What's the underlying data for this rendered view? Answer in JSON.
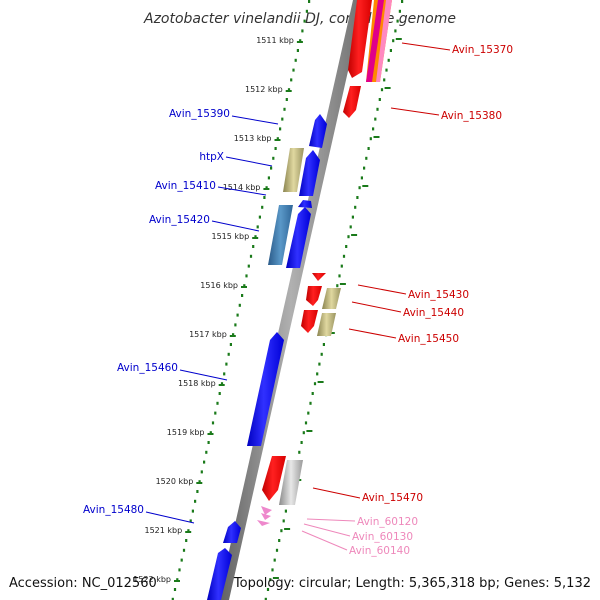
{
  "title": "Azotobacter vinelandii DJ, complete genome",
  "footer": {
    "accession": "Accession: NC_012560",
    "topology": "Topology: circular; Length: 5,365,318 bp; Genes: 5,132"
  },
  "colors": {
    "background": "#ffffff",
    "backbone": "#808080",
    "tick": "#1a7a1a",
    "forward_label": "#0000cc",
    "reverse_label": "#cc0000",
    "rna_label": "#ee88bb",
    "cds_forward": "#0000ee",
    "cds_reverse": "#ee0000",
    "pseudo": "#b8b070",
    "steelblue": "#3a78a8",
    "gray_feature": "#b0b0b0",
    "trna": "#ee88cc"
  },
  "ticks": [
    {
      "label": "1511 kbp",
      "kbp": 1511
    },
    {
      "label": "1512 kbp",
      "kbp": 1512
    },
    {
      "label": "1513 kbp",
      "kbp": 1513
    },
    {
      "label": "1514 kbp",
      "kbp": 1514
    },
    {
      "label": "1515 kbp",
      "kbp": 1515
    },
    {
      "label": "1516 kbp",
      "kbp": 1516
    },
    {
      "label": "1517 kbp",
      "kbp": 1517
    },
    {
      "label": "1518 kbp",
      "kbp": 1518
    },
    {
      "label": "1519 kbp",
      "kbp": 1519
    },
    {
      "label": "1520 kbp",
      "kbp": 1520
    },
    {
      "label": "1521 kbp",
      "kbp": 1521
    },
    {
      "label": "1522 kbp",
      "kbp": 1522
    }
  ],
  "labels": {
    "left": [
      {
        "text": "Avin_15390",
        "color": "forward_label"
      },
      {
        "text": "htpX",
        "color": "forward_label"
      },
      {
        "text": "Avin_15410",
        "color": "forward_label"
      },
      {
        "text": "Avin_15420",
        "color": "forward_label"
      },
      {
        "text": "Avin_15460",
        "color": "forward_label"
      },
      {
        "text": "Avin_15480",
        "color": "forward_label"
      }
    ],
    "right": [
      {
        "text": "Avin_15370",
        "color": "reverse_label"
      },
      {
        "text": "Avin_15380",
        "color": "reverse_label"
      },
      {
        "text": "Avin_15430",
        "color": "reverse_label"
      },
      {
        "text": "Avin_15440",
        "color": "reverse_label"
      },
      {
        "text": "Avin_15450",
        "color": "reverse_label"
      },
      {
        "text": "Avin_15470",
        "color": "reverse_label"
      },
      {
        "text": "Avin_60120",
        "color": "rna_label"
      },
      {
        "text": "Avin_60130",
        "color": "rna_label"
      },
      {
        "text": "Avin_60140",
        "color": "rna_label"
      }
    ]
  }
}
